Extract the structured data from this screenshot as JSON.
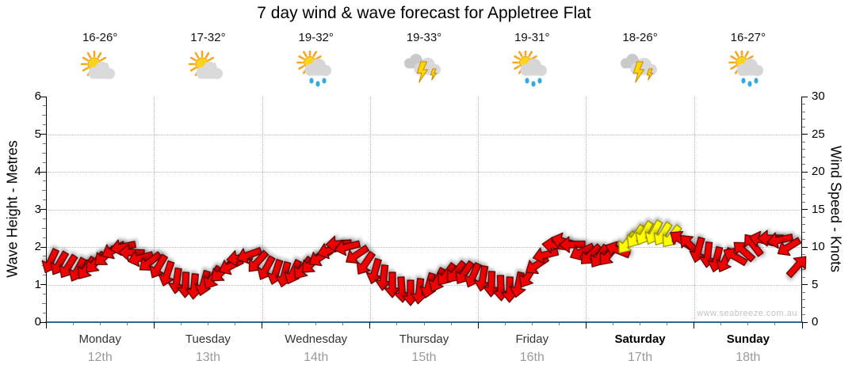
{
  "title": "7 day wind & wave forecast for Appletree Flat",
  "watermark": "www.seabreeze.com.au",
  "forecast_days": [
    {
      "day": "Monday",
      "date": "12th",
      "temp": "16-26°",
      "icon": "sun-cloud",
      "bold": false
    },
    {
      "day": "Tuesday",
      "date": "13th",
      "temp": "17-32°",
      "icon": "sun-cloud",
      "bold": false
    },
    {
      "day": "Wednesday",
      "date": "14th",
      "temp": "19-32°",
      "icon": "sun-cloud-rain",
      "bold": false
    },
    {
      "day": "Thursday",
      "date": "15th",
      "temp": "19-33°",
      "icon": "storm",
      "bold": false
    },
    {
      "day": "Friday",
      "date": "16th",
      "temp": "19-31°",
      "icon": "sun-cloud-rain",
      "bold": false
    },
    {
      "day": "Saturday",
      "date": "17th",
      "temp": "18-26°",
      "icon": "storm",
      "bold": true
    },
    {
      "day": "Sunday",
      "date": "18th",
      "temp": "16-27°",
      "icon": "sun-cloud-rain",
      "bold": true
    }
  ],
  "left_axis": {
    "label": "Wave Height - Metres",
    "min": 0,
    "max": 6,
    "major_ticks": [
      0,
      1,
      2,
      3,
      4,
      5,
      6
    ]
  },
  "right_axis": {
    "label": "Wind Speed - Knots",
    "min": 0,
    "max": 30,
    "major_ticks": [
      0,
      5,
      10,
      15,
      20,
      25,
      30
    ]
  },
  "colors": {
    "arrow_red": "#ee0202",
    "arrow_red_outline": "#550000",
    "arrow_yellow": "#ffff00",
    "arrow_yellow_outline": "#9a8a00",
    "x_axis_line": "#2d6a87",
    "grid": "#b8b8b8",
    "day_text": "#333333",
    "weekend_text": "#000000",
    "date_text": "#9a9a9a"
  },
  "chart_data": {
    "type": "wind-arrow-series",
    "description": "Wind speed (knots, right axis) shown as direction arrows at ~2-hourly steps over 7 days; yellow arrows mark the strongest winds on Saturday",
    "points_per_day": 12,
    "categories": [
      "Monday 12th",
      "Tuesday 13th",
      "Wednesday 14th",
      "Thursday 15th",
      "Friday 16th",
      "Saturday 17th",
      "Sunday 18th"
    ],
    "knots": [
      8.1,
      7.8,
      7.4,
      7.0,
      7.2,
      7.9,
      8.7,
      9.6,
      10.0,
      9.3,
      8.5,
      8.0,
      7.4,
      6.4,
      5.5,
      4.9,
      4.7,
      5.2,
      5.9,
      6.6,
      7.5,
      8.5,
      8.9,
      8.0,
      7.2,
      6.6,
      6.3,
      6.6,
      7.2,
      7.8,
      8.6,
      9.6,
      10.4,
      10.0,
      9.0,
      7.8,
      6.7,
      5.9,
      5.0,
      4.3,
      3.9,
      4.1,
      4.8,
      5.6,
      6.3,
      6.6,
      6.5,
      6.2,
      5.8,
      5.1,
      4.5,
      4.3,
      4.9,
      6.1,
      7.6,
      9.0,
      10.2,
      10.7,
      10.3,
      9.4,
      9.0,
      8.7,
      8.9,
      9.6,
      10.5,
      11.4,
      11.8,
      11.9,
      11.7,
      11.4,
      11.0,
      10.3,
      9.6,
      8.9,
      8.3,
      8.2,
      8.7,
      9.5,
      10.3,
      10.9,
      11.2,
      10.9,
      10.0,
      7.5
    ],
    "dir_deg": [
      205,
      210,
      212,
      208,
      215,
      222,
      230,
      242,
      258,
      272,
      255,
      232,
      210,
      198,
      188,
      182,
      185,
      196,
      212,
      228,
      244,
      262,
      250,
      222,
      208,
      198,
      194,
      205,
      216,
      226,
      238,
      252,
      266,
      256,
      236,
      214,
      196,
      186,
      180,
      176,
      180,
      186,
      196,
      206,
      216,
      220,
      214,
      204,
      190,
      182,
      178,
      181,
      192,
      212,
      236,
      256,
      276,
      286,
      268,
      244,
      226,
      214,
      220,
      292,
      218,
      214,
      209,
      207,
      212,
      218,
      305,
      316,
      195,
      186,
      194,
      206,
      300,
      312,
      322,
      284,
      270,
      258,
      238,
      42
    ],
    "yellow_indices": [
      64,
      65,
      66,
      67,
      68,
      69
    ],
    "ylim_left_metres": [
      0,
      6
    ],
    "ylim_right_knots": [
      0,
      30
    ],
    "grid": "dotted at each metre / 5 knots and at day boundaries"
  }
}
